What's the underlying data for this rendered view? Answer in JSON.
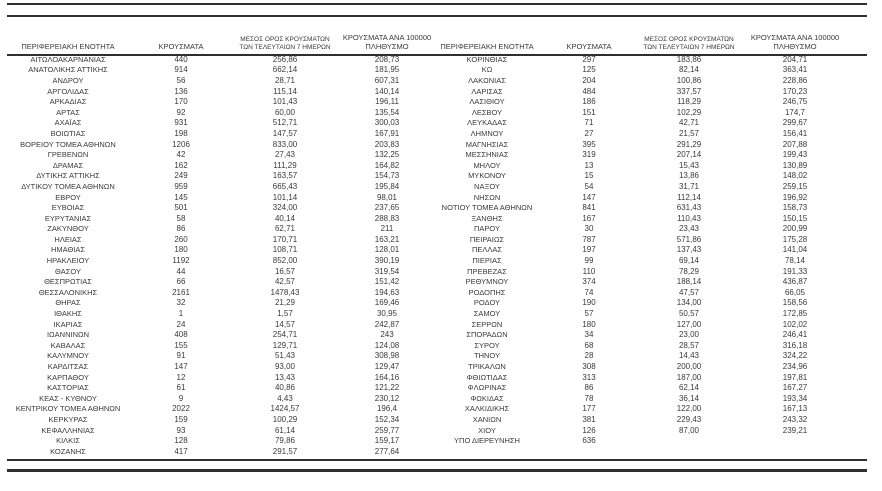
{
  "columns": {
    "region": "ΠΕΡΙΦΕΡΕΙΑΚΗ ΕΝΟΤΗΤΑ",
    "cases": "ΚΡΟΥΣΜΑΤΑ",
    "avg7_line1": "ΜΕΣΟΣ ΟΡΟΣ ΚΡΟΥΣΜΑΤΩΝ",
    "avg7_line2": "ΤΩΝ ΤΕΛΕΥΤΑΙΩΝ 7 ΗΜΕΡΩΝ",
    "per100k_line1": "ΚΡΟΥΣΜΑΤΑ ΑΝΑ 100000",
    "per100k_line2": "ΠΛΗΘΥΣΜΟ"
  },
  "colors": {
    "text": "#3a3a3a",
    "line": "#2f2f2f",
    "background": "#ffffff"
  },
  "left_table": {
    "rows": [
      [
        "ΑΙΤΩΛΟΑΚΑΡΝΑΝΙΑΣ",
        "440",
        "256,86",
        "208,73"
      ],
      [
        "ΑΝΑΤΟΛΙΚΗΣ ΑΤΤΙΚΗΣ",
        "914",
        "662,14",
        "181,95"
      ],
      [
        "ΑΝΔΡΟΥ",
        "56",
        "28,71",
        "607,31"
      ],
      [
        "ΑΡΓΟΛΙΔΑΣ",
        "136",
        "115,14",
        "140,14"
      ],
      [
        "ΑΡΚΑΔΙΑΣ",
        "170",
        "101,43",
        "196,11"
      ],
      [
        "ΑΡΤΑΣ",
        "92",
        "60,00",
        "135,54"
      ],
      [
        "ΑΧΑΪΑΣ",
        "931",
        "512,71",
        "300,03"
      ],
      [
        "ΒΟΙΩΤΙΑΣ",
        "198",
        "147,57",
        "167,91"
      ],
      [
        "ΒΟΡΕΙΟΥ ΤΟΜΕΑ ΑΘΗΝΩΝ",
        "1206",
        "833,00",
        "203,83"
      ],
      [
        "ΓΡΕΒΕΝΩΝ",
        "42",
        "27,43",
        "132,25"
      ],
      [
        "ΔΡΑΜΑΣ",
        "162",
        "111,29",
        "164,82"
      ],
      [
        "ΔΥΤΙΚΗΣ ΑΤΤΙΚΗΣ",
        "249",
        "163,57",
        "154,73"
      ],
      [
        "ΔΥΤΙΚΟΥ ΤΟΜΕΑ ΑΘΗΝΩΝ",
        "959",
        "665,43",
        "195,84"
      ],
      [
        "ΕΒΡΟΥ",
        "145",
        "101,14",
        "98,01"
      ],
      [
        "ΕΥΒΟΙΑΣ",
        "501",
        "324,00",
        "237,65"
      ],
      [
        "ΕΥΡΥΤΑΝΙΑΣ",
        "58",
        "40,14",
        "288,83"
      ],
      [
        "ΖΑΚΥΝΘΟΥ",
        "86",
        "62,71",
        "211"
      ],
      [
        "ΗΛΕΙΑΣ",
        "260",
        "170,71",
        "163,21"
      ],
      [
        "ΗΜΑΘΙΑΣ",
        "180",
        "108,71",
        "128,01"
      ],
      [
        "ΗΡΑΚΛΕΙΟΥ",
        "1192",
        "852,00",
        "390,19"
      ],
      [
        "ΘΑΣΟΥ",
        "44",
        "16,57",
        "319,54"
      ],
      [
        "ΘΕΣΠΡΩΤΙΑΣ",
        "66",
        "42,57",
        "151,42"
      ],
      [
        "ΘΕΣΣΑΛΟΝΙΚΗΣ",
        "2161",
        "1478,43",
        "194,63"
      ],
      [
        "ΘΗΡΑΣ",
        "32",
        "21,29",
        "169,46"
      ],
      [
        "ΙΘΑΚΗΣ",
        "1",
        "1,57",
        "30,95"
      ],
      [
        "ΙΚΑΡΙΑΣ",
        "24",
        "14,57",
        "242,87"
      ],
      [
        "ΙΩΑΝΝΙΝΩΝ",
        "408",
        "254,71",
        "243"
      ],
      [
        "ΚΑΒΑΛΑΣ",
        "155",
        "129,71",
        "124,08"
      ],
      [
        "ΚΑΛΥΜΝΟΥ",
        "91",
        "51,43",
        "308,98"
      ],
      [
        "ΚΑΡΔΙΤΣΑΣ",
        "147",
        "93,00",
        "129,47"
      ],
      [
        "ΚΑΡΠΑΘΟΥ",
        "12",
        "13,43",
        "164,16"
      ],
      [
        "ΚΑΣΤΟΡΙΑΣ",
        "61",
        "40,86",
        "121,22"
      ],
      [
        "ΚΕΑΣ - ΚΥΘΝΟΥ",
        "9",
        "4,43",
        "230,12"
      ],
      [
        "ΚΕΝΤΡΙΚΟΥ ΤΟΜΕΑ ΑΘΗΝΩΝ",
        "2022",
        "1424,57",
        "196,4"
      ],
      [
        "ΚΕΡΚΥΡΑΣ",
        "159",
        "100,29",
        "152,34"
      ],
      [
        "ΚΕΦΑΛΛΗΝΙΑΣ",
        "93",
        "61,14",
        "259,77"
      ],
      [
        "ΚΙΛΚΙΣ",
        "128",
        "79,86",
        "159,17"
      ],
      [
        "ΚΟΖΑΝΗΣ",
        "417",
        "291,57",
        "277,64"
      ]
    ]
  },
  "right_table": {
    "rows": [
      [
        "ΚΟΡΙΝΘΙΑΣ",
        "297",
        "183,86",
        "204,71"
      ],
      [
        "ΚΩ",
        "125",
        "82,14",
        "363,41"
      ],
      [
        "ΛΑΚΩΝΙΑΣ",
        "204",
        "100,86",
        "228,86"
      ],
      [
        "ΛΑΡΙΣΑΣ",
        "484",
        "337,57",
        "170,23"
      ],
      [
        "ΛΑΣΙΘΙΟΥ",
        "186",
        "118,29",
        "246,75"
      ],
      [
        "ΛΕΣΒΟΥ",
        "151",
        "102,29",
        "174,7"
      ],
      [
        "ΛΕΥΚΑΔΑΣ",
        "71",
        "42,71",
        "299,67"
      ],
      [
        "ΛΗΜΝΟΥ",
        "27",
        "21,57",
        "156,41"
      ],
      [
        "ΜΑΓΝΗΣΙΑΣ",
        "395",
        "291,29",
        "207,88"
      ],
      [
        "ΜΕΣΣΗΝΙΑΣ",
        "319",
        "207,14",
        "199,43"
      ],
      [
        "ΜΗΛΟΥ",
        "13",
        "15,43",
        "130,89"
      ],
      [
        "ΜΥΚΟΝΟΥ",
        "15",
        "13,86",
        "148,02"
      ],
      [
        "ΝΑΞΟΥ",
        "54",
        "31,71",
        "259,15"
      ],
      [
        "ΝΗΣΩΝ",
        "147",
        "112,14",
        "196,92"
      ],
      [
        "ΝΟΤΙΟΥ ΤΟΜΕΑ ΑΘΗΝΩΝ",
        "841",
        "631,43",
        "158,73"
      ],
      [
        "ΞΑΝΘΗΣ",
        "167",
        "110,43",
        "150,15"
      ],
      [
        "ΠΑΡΟΥ",
        "30",
        "23,43",
        "200,99"
      ],
      [
        "ΠΕΙΡΑΙΩΣ",
        "787",
        "571,86",
        "175,28"
      ],
      [
        "ΠΕΛΛΑΣ",
        "197",
        "137,43",
        "141,04"
      ],
      [
        "ΠΙΕΡΙΑΣ",
        "99",
        "69,14",
        "78,14"
      ],
      [
        "ΠΡΕΒΕΖΑΣ",
        "110",
        "78,29",
        "191,33"
      ],
      [
        "ΡΕΘΥΜΝΟΥ",
        "374",
        "188,14",
        "436,87"
      ],
      [
        "ΡΟΔΟΠΗΣ",
        "74",
        "47,57",
        "66,05"
      ],
      [
        "ΡΟΔΟΥ",
        "190",
        "134,00",
        "158,56"
      ],
      [
        "ΣΑΜΟΥ",
        "57",
        "50,57",
        "172,85"
      ],
      [
        "ΣΕΡΡΩΝ",
        "180",
        "127,00",
        "102,02"
      ],
      [
        "ΣΠΟΡΑΔΩΝ",
        "34",
        "23,00",
        "246,41"
      ],
      [
        "ΣΥΡΟΥ",
        "68",
        "28,57",
        "316,18"
      ],
      [
        "ΤΗΝΟΥ",
        "28",
        "14,43",
        "324,22"
      ],
      [
        "ΤΡΙΚΑΛΩΝ",
        "308",
        "200,00",
        "234,96"
      ],
      [
        "ΦΘΙΩΤΙΔΑΣ",
        "313",
        "187,00",
        "197,81"
      ],
      [
        "ΦΛΩΡΙΝΑΣ",
        "86",
        "62,14",
        "167,27"
      ],
      [
        "ΦΩΚΙΔΑΣ",
        "78",
        "36,14",
        "193,34"
      ],
      [
        "ΧΑΛΚΙΔΙΚΗΣ",
        "177",
        "122,00",
        "167,13"
      ],
      [
        "ΧΑΝΙΩΝ",
        "381",
        "229,43",
        "243,32"
      ],
      [
        "ΧΙΟΥ",
        "126",
        "87,00",
        "239,21"
      ],
      [
        "ΥΠΟ ΔΙΕΡΕΥΝΗΣΗ",
        "636",
        "",
        ""
      ]
    ]
  }
}
